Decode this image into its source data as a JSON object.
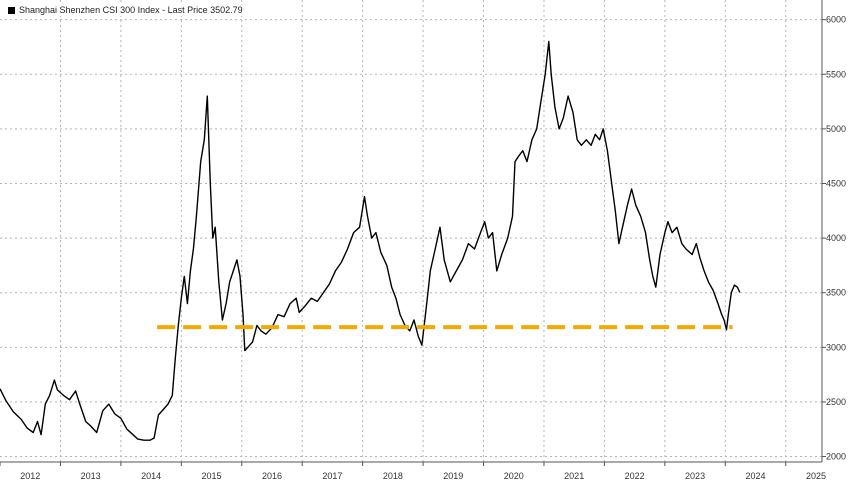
{
  "chart_data": {
    "type": "line",
    "title": "",
    "xlabel": "",
    "ylabel": "",
    "legend": {
      "label": "Shanghai Shenzhen CSI 300 Index - Last Price 3502.79",
      "placement": "top-left"
    },
    "xlim": [
      2012.0,
      2025.6
    ],
    "ylim": [
      1950,
      6180
    ],
    "x_ticks": [
      "2012",
      "2013",
      "2014",
      "2015",
      "2016",
      "2017",
      "2018",
      "2019",
      "2020",
      "2021",
      "2022",
      "2023",
      "2024",
      "2025"
    ],
    "y_ticks": [
      "2000",
      "2500",
      "3000",
      "3500",
      "4000",
      "4500",
      "5000",
      "5500",
      "6000"
    ],
    "grid": true,
    "series": [
      {
        "name": "Shanghai Shenzhen CSI 300 Index",
        "color": "#000000",
        "points": [
          [
            2012.0,
            2620
          ],
          [
            2012.1,
            2510
          ],
          [
            2012.22,
            2410
          ],
          [
            2012.35,
            2340
          ],
          [
            2012.45,
            2260
          ],
          [
            2012.55,
            2220
          ],
          [
            2012.62,
            2320
          ],
          [
            2012.68,
            2200
          ],
          [
            2012.75,
            2480
          ],
          [
            2012.82,
            2560
          ],
          [
            2012.9,
            2700
          ],
          [
            2012.95,
            2610
          ],
          [
            2013.05,
            2560
          ],
          [
            2013.15,
            2520
          ],
          [
            2013.25,
            2600
          ],
          [
            2013.32,
            2480
          ],
          [
            2013.42,
            2320
          ],
          [
            2013.5,
            2280
          ],
          [
            2013.6,
            2220
          ],
          [
            2013.7,
            2420
          ],
          [
            2013.8,
            2480
          ],
          [
            2013.9,
            2390
          ],
          [
            2014.0,
            2350
          ],
          [
            2014.1,
            2250
          ],
          [
            2014.2,
            2200
          ],
          [
            2014.28,
            2160
          ],
          [
            2014.38,
            2150
          ],
          [
            2014.48,
            2150
          ],
          [
            2014.55,
            2170
          ],
          [
            2014.62,
            2380
          ],
          [
            2014.7,
            2430
          ],
          [
            2014.78,
            2480
          ],
          [
            2014.85,
            2560
          ],
          [
            2014.9,
            2900
          ],
          [
            2014.95,
            3200
          ],
          [
            2015.0,
            3450
          ],
          [
            2015.05,
            3650
          ],
          [
            2015.1,
            3400
          ],
          [
            2015.15,
            3700
          ],
          [
            2015.2,
            3900
          ],
          [
            2015.25,
            4200
          ],
          [
            2015.32,
            4700
          ],
          [
            2015.38,
            4900
          ],
          [
            2015.43,
            5300
          ],
          [
            2015.48,
            4500
          ],
          [
            2015.52,
            4000
          ],
          [
            2015.56,
            4100
          ],
          [
            2015.62,
            3600
          ],
          [
            2015.68,
            3250
          ],
          [
            2015.74,
            3400
          ],
          [
            2015.8,
            3600
          ],
          [
            2015.86,
            3700
          ],
          [
            2015.92,
            3800
          ],
          [
            2015.97,
            3650
          ],
          [
            2016.02,
            3300
          ],
          [
            2016.05,
            2970
          ],
          [
            2016.1,
            3000
          ],
          [
            2016.18,
            3050
          ],
          [
            2016.25,
            3200
          ],
          [
            2016.32,
            3150
          ],
          [
            2016.4,
            3120
          ],
          [
            2016.5,
            3180
          ],
          [
            2016.6,
            3300
          ],
          [
            2016.7,
            3280
          ],
          [
            2016.8,
            3400
          ],
          [
            2016.9,
            3450
          ],
          [
            2016.95,
            3320
          ],
          [
            2017.05,
            3380
          ],
          [
            2017.15,
            3450
          ],
          [
            2017.25,
            3420
          ],
          [
            2017.35,
            3500
          ],
          [
            2017.45,
            3580
          ],
          [
            2017.55,
            3700
          ],
          [
            2017.65,
            3780
          ],
          [
            2017.75,
            3900
          ],
          [
            2017.85,
            4050
          ],
          [
            2017.95,
            4100
          ],
          [
            2018.03,
            4380
          ],
          [
            2018.08,
            4200
          ],
          [
            2018.15,
            4000
          ],
          [
            2018.22,
            4050
          ],
          [
            2018.3,
            3870
          ],
          [
            2018.4,
            3750
          ],
          [
            2018.48,
            3550
          ],
          [
            2018.55,
            3450
          ],
          [
            2018.62,
            3300
          ],
          [
            2018.7,
            3200
          ],
          [
            2018.78,
            3150
          ],
          [
            2018.85,
            3250
          ],
          [
            2018.92,
            3100
          ],
          [
            2018.98,
            3020
          ],
          [
            2019.05,
            3350
          ],
          [
            2019.12,
            3700
          ],
          [
            2019.2,
            3900
          ],
          [
            2019.28,
            4100
          ],
          [
            2019.35,
            3800
          ],
          [
            2019.45,
            3600
          ],
          [
            2019.55,
            3700
          ],
          [
            2019.65,
            3800
          ],
          [
            2019.75,
            3950
          ],
          [
            2019.85,
            3900
          ],
          [
            2019.95,
            4050
          ],
          [
            2020.02,
            4150
          ],
          [
            2020.08,
            4000
          ],
          [
            2020.15,
            4050
          ],
          [
            2020.22,
            3700
          ],
          [
            2020.3,
            3850
          ],
          [
            2020.4,
            4000
          ],
          [
            2020.48,
            4200
          ],
          [
            2020.52,
            4700
          ],
          [
            2020.58,
            4750
          ],
          [
            2020.65,
            4800
          ],
          [
            2020.72,
            4700
          ],
          [
            2020.8,
            4900
          ],
          [
            2020.88,
            5000
          ],
          [
            2020.95,
            5250
          ],
          [
            2021.02,
            5500
          ],
          [
            2021.08,
            5800
          ],
          [
            2021.12,
            5500
          ],
          [
            2021.18,
            5200
          ],
          [
            2021.25,
            5000
          ],
          [
            2021.32,
            5100
          ],
          [
            2021.4,
            5300
          ],
          [
            2021.48,
            5150
          ],
          [
            2021.55,
            4900
          ],
          [
            2021.62,
            4850
          ],
          [
            2021.7,
            4900
          ],
          [
            2021.78,
            4850
          ],
          [
            2021.85,
            4950
          ],
          [
            2021.92,
            4900
          ],
          [
            2021.98,
            5000
          ],
          [
            2022.05,
            4800
          ],
          [
            2022.12,
            4500
          ],
          [
            2022.18,
            4250
          ],
          [
            2022.24,
            3950
          ],
          [
            2022.3,
            4100
          ],
          [
            2022.38,
            4300
          ],
          [
            2022.45,
            4450
          ],
          [
            2022.52,
            4300
          ],
          [
            2022.6,
            4200
          ],
          [
            2022.68,
            4050
          ],
          [
            2022.75,
            3800
          ],
          [
            2022.8,
            3650
          ],
          [
            2022.85,
            3550
          ],
          [
            2022.92,
            3850
          ],
          [
            2023.0,
            4050
          ],
          [
            2023.05,
            4150
          ],
          [
            2023.12,
            4050
          ],
          [
            2023.2,
            4100
          ],
          [
            2023.28,
            3950
          ],
          [
            2023.35,
            3900
          ],
          [
            2023.45,
            3850
          ],
          [
            2023.52,
            3950
          ],
          [
            2023.58,
            3820
          ],
          [
            2023.65,
            3700
          ],
          [
            2023.72,
            3600
          ],
          [
            2023.8,
            3520
          ],
          [
            2023.88,
            3400
          ],
          [
            2023.94,
            3300
          ],
          [
            2023.98,
            3250
          ],
          [
            2024.02,
            3160
          ],
          [
            2024.05,
            3300
          ],
          [
            2024.1,
            3500
          ],
          [
            2024.15,
            3570
          ],
          [
            2024.2,
            3550
          ],
          [
            2024.24,
            3502.79
          ]
        ]
      }
    ],
    "annotations": [
      {
        "type": "hline",
        "y": 3185,
        "x_start": 2014.6,
        "x_end": 2024.12,
        "color": "#F2A900",
        "style": "dashed"
      }
    ]
  }
}
